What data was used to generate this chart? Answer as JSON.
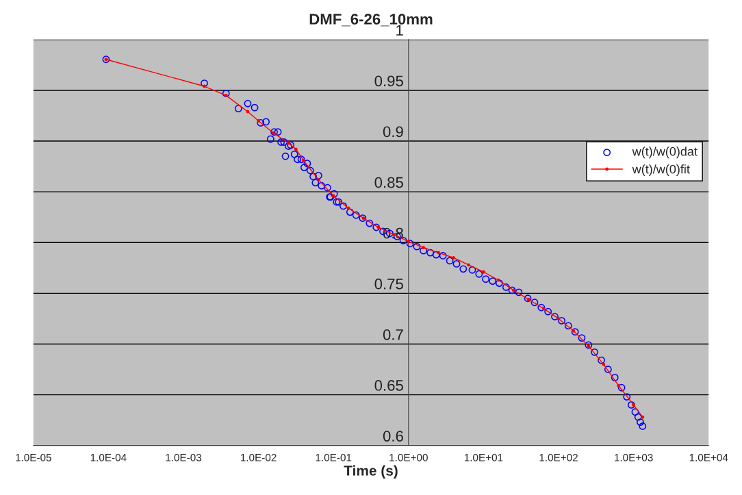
{
  "chart_data": {
    "type": "scatter",
    "title": "DMF_6-26_10mm",
    "xlabel": "Time (s)",
    "log": "x",
    "xlim": [
      1e-05,
      10000
    ],
    "xticks": [
      {
        "value": 1e-05,
        "label": "1.0E-05"
      },
      {
        "value": 0.0001,
        "label": "1.0E-04"
      },
      {
        "value": 0.001,
        "label": "1.0E-03"
      },
      {
        "value": 0.01,
        "label": "1.0E-02"
      },
      {
        "value": 0.1,
        "label": "1.0E-01"
      },
      {
        "value": 1,
        "label": "1.0E+00"
      },
      {
        "value": 10,
        "label": "1.0E+01"
      },
      {
        "value": 100,
        "label": "1.0E+02"
      },
      {
        "value": 1000,
        "label": "1.0E+03"
      },
      {
        "value": 10000,
        "label": "1.0E+04"
      }
    ],
    "ylim": [
      0.6,
      1
    ],
    "yticks": [
      0.6,
      0.65,
      0.7,
      0.75,
      0.8,
      0.85,
      0.9,
      0.95,
      1
    ],
    "grid": "y",
    "legend": "right",
    "series": [
      {
        "name": "w(t)/w(0)dat",
        "marker": "circle",
        "color": "#0000ff",
        "x": [
          9.3e-05,
          0.0019,
          0.0037,
          0.0054,
          0.0072,
          0.0089,
          0.0107,
          0.0126,
          0.0145,
          0.0162,
          0.0182,
          0.02,
          0.0219,
          0.0229,
          0.0251,
          0.0269,
          0.0302,
          0.0331,
          0.0372,
          0.0407,
          0.0447,
          0.049,
          0.0537,
          0.0575,
          0.0631,
          0.0692,
          0.0832,
          0.0891,
          0.0912,
          0.102,
          0.11,
          0.117,
          0.135,
          0.166,
          0.2,
          0.245,
          0.302,
          0.372,
          0.457,
          0.562,
          0.708,
          0.851,
          1.05,
          1.29,
          1.58,
          1.95,
          2.34,
          2.88,
          3.55,
          4.37,
          5.37,
          7.08,
          8.71,
          10.7,
          13.2,
          16.2,
          20.0,
          24.0,
          29.5,
          38.9,
          47.9,
          58.9,
          72.4,
          89.1,
          110,
          135,
          166,
          204,
          251,
          302,
          372,
          457,
          562,
          692,
          813,
          933,
          1050,
          1150,
          1230,
          1320
        ],
        "values": [
          0.9805,
          0.957,
          0.947,
          0.932,
          0.937,
          0.933,
          0.918,
          0.919,
          0.902,
          0.909,
          0.909,
          0.899,
          0.899,
          0.885,
          0.895,
          0.896,
          0.887,
          0.882,
          0.882,
          0.874,
          0.878,
          0.871,
          0.865,
          0.859,
          0.866,
          0.856,
          0.854,
          0.845,
          0.845,
          0.848,
          0.84,
          0.84,
          0.836,
          0.83,
          0.827,
          0.824,
          0.819,
          0.815,
          0.811,
          0.809,
          0.806,
          0.802,
          0.799,
          0.796,
          0.792,
          0.79,
          0.788,
          0.787,
          0.782,
          0.779,
          0.774,
          0.773,
          0.769,
          0.764,
          0.762,
          0.76,
          0.756,
          0.753,
          0.751,
          0.745,
          0.741,
          0.736,
          0.732,
          0.727,
          0.723,
          0.718,
          0.712,
          0.706,
          0.699,
          0.692,
          0.684,
          0.675,
          0.667,
          0.657,
          0.648,
          0.64,
          0.633,
          0.628,
          0.623,
          0.619
        ]
      },
      {
        "name": "w(t)/w(0)fit",
        "type": "line",
        "marker": "circle",
        "line_style": "solid",
        "color": "#ff0000",
        "x": [
          9.3e-05,
          0.0019,
          0.0037,
          0.0072,
          0.01,
          0.0158,
          0.0251,
          0.0316,
          0.0398,
          0.0631,
          0.1,
          0.158,
          0.251,
          0.398,
          0.631,
          1,
          1.58,
          2.51,
          3.98,
          6.31,
          10,
          15.8,
          25.1,
          39.8,
          63.1,
          100,
          158,
          251,
          398,
          631,
          1000,
          1320
        ],
        "values": [
          0.9805,
          0.954,
          0.945,
          0.929,
          0.92,
          0.908,
          0.898,
          0.892,
          0.881,
          0.862,
          0.846,
          0.834,
          0.824,
          0.815,
          0.808,
          0.801,
          0.795,
          0.79,
          0.785,
          0.778,
          0.771,
          0.763,
          0.753,
          0.744,
          0.735,
          0.725,
          0.713,
          0.698,
          0.68,
          0.659,
          0.64,
          0.628
        ]
      }
    ]
  }
}
